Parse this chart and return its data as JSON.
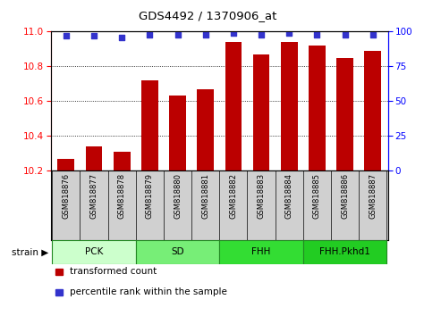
{
  "title": "GDS4492 / 1370906_at",
  "samples": [
    "GSM818876",
    "GSM818877",
    "GSM818878",
    "GSM818879",
    "GSM818880",
    "GSM818881",
    "GSM818882",
    "GSM818883",
    "GSM818884",
    "GSM818885",
    "GSM818886",
    "GSM818887"
  ],
  "transformed_counts": [
    10.27,
    10.34,
    10.31,
    10.72,
    10.63,
    10.67,
    10.94,
    10.87,
    10.94,
    10.92,
    10.85,
    10.89
  ],
  "percentile_ranks": [
    97,
    97,
    96,
    98,
    98,
    98,
    99,
    98,
    99,
    98,
    98,
    98
  ],
  "ylim_left": [
    10.2,
    11.0
  ],
  "ylim_right": [
    0,
    100
  ],
  "yticks_left": [
    10.2,
    10.4,
    10.6,
    10.8,
    11.0
  ],
  "yticks_right": [
    0,
    25,
    50,
    75,
    100
  ],
  "bar_color": "#bb0000",
  "dot_color": "#3333cc",
  "groups": [
    {
      "label": "PCK",
      "start": 0,
      "end": 2,
      "color": "#ccffcc"
    },
    {
      "label": "SD",
      "start": 3,
      "end": 5,
      "color": "#77ee77"
    },
    {
      "label": "FHH",
      "start": 6,
      "end": 8,
      "color": "#33dd33"
    },
    {
      "label": "FHH.Pkhd1",
      "start": 9,
      "end": 11,
      "color": "#22cc22"
    }
  ],
  "legend_items": [
    {
      "color": "#bb0000",
      "label": "transformed count"
    },
    {
      "color": "#3333cc",
      "label": "percentile rank within the sample"
    }
  ],
  "label_bg": "#d0d0d0",
  "group_border": "#228822"
}
